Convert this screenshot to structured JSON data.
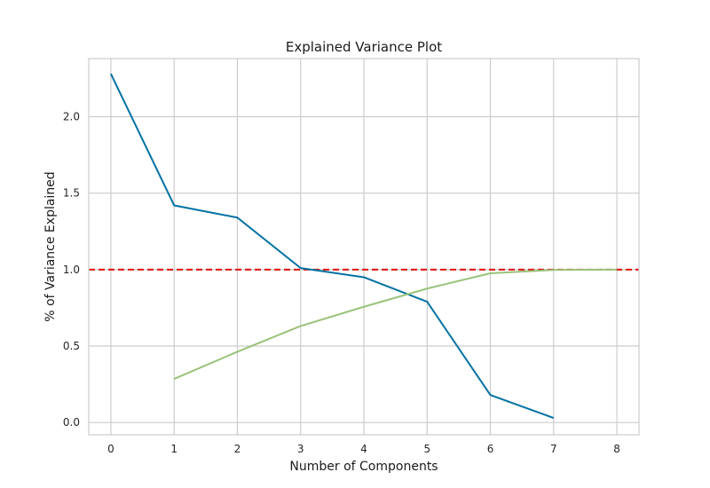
{
  "chart_data": {
    "type": "line",
    "title": "Explained Variance Plot",
    "xlabel": "Number of Components",
    "ylabel": "% of Variance Explained",
    "x_ticks": [
      "0",
      "1",
      "2",
      "3",
      "4",
      "5",
      "6",
      "7",
      "8"
    ],
    "y_ticks": [
      "0.0",
      "0.5",
      "1.0",
      "1.5",
      "2.0"
    ],
    "xlim": [
      -0.35,
      8.35
    ],
    "ylim": [
      -0.08,
      2.38
    ],
    "grid": true,
    "series": [
      {
        "color": "#0072a2",
        "x": [
          0,
          1,
          2,
          3,
          4,
          5,
          6,
          7
        ],
        "y": [
          2.28,
          1.42,
          1.34,
          1.01,
          0.95,
          0.79,
          0.18,
          0.03
        ]
      },
      {
        "color": "#9ac27a",
        "x": [
          1,
          2,
          3,
          4,
          5,
          6,
          7,
          8
        ],
        "y": [
          0.285,
          0.463,
          0.631,
          0.757,
          0.876,
          0.976,
          0.998,
          1.0
        ]
      }
    ],
    "reference_line": {
      "y": 1.0,
      "color": "#e01010",
      "style": "dashed"
    }
  }
}
